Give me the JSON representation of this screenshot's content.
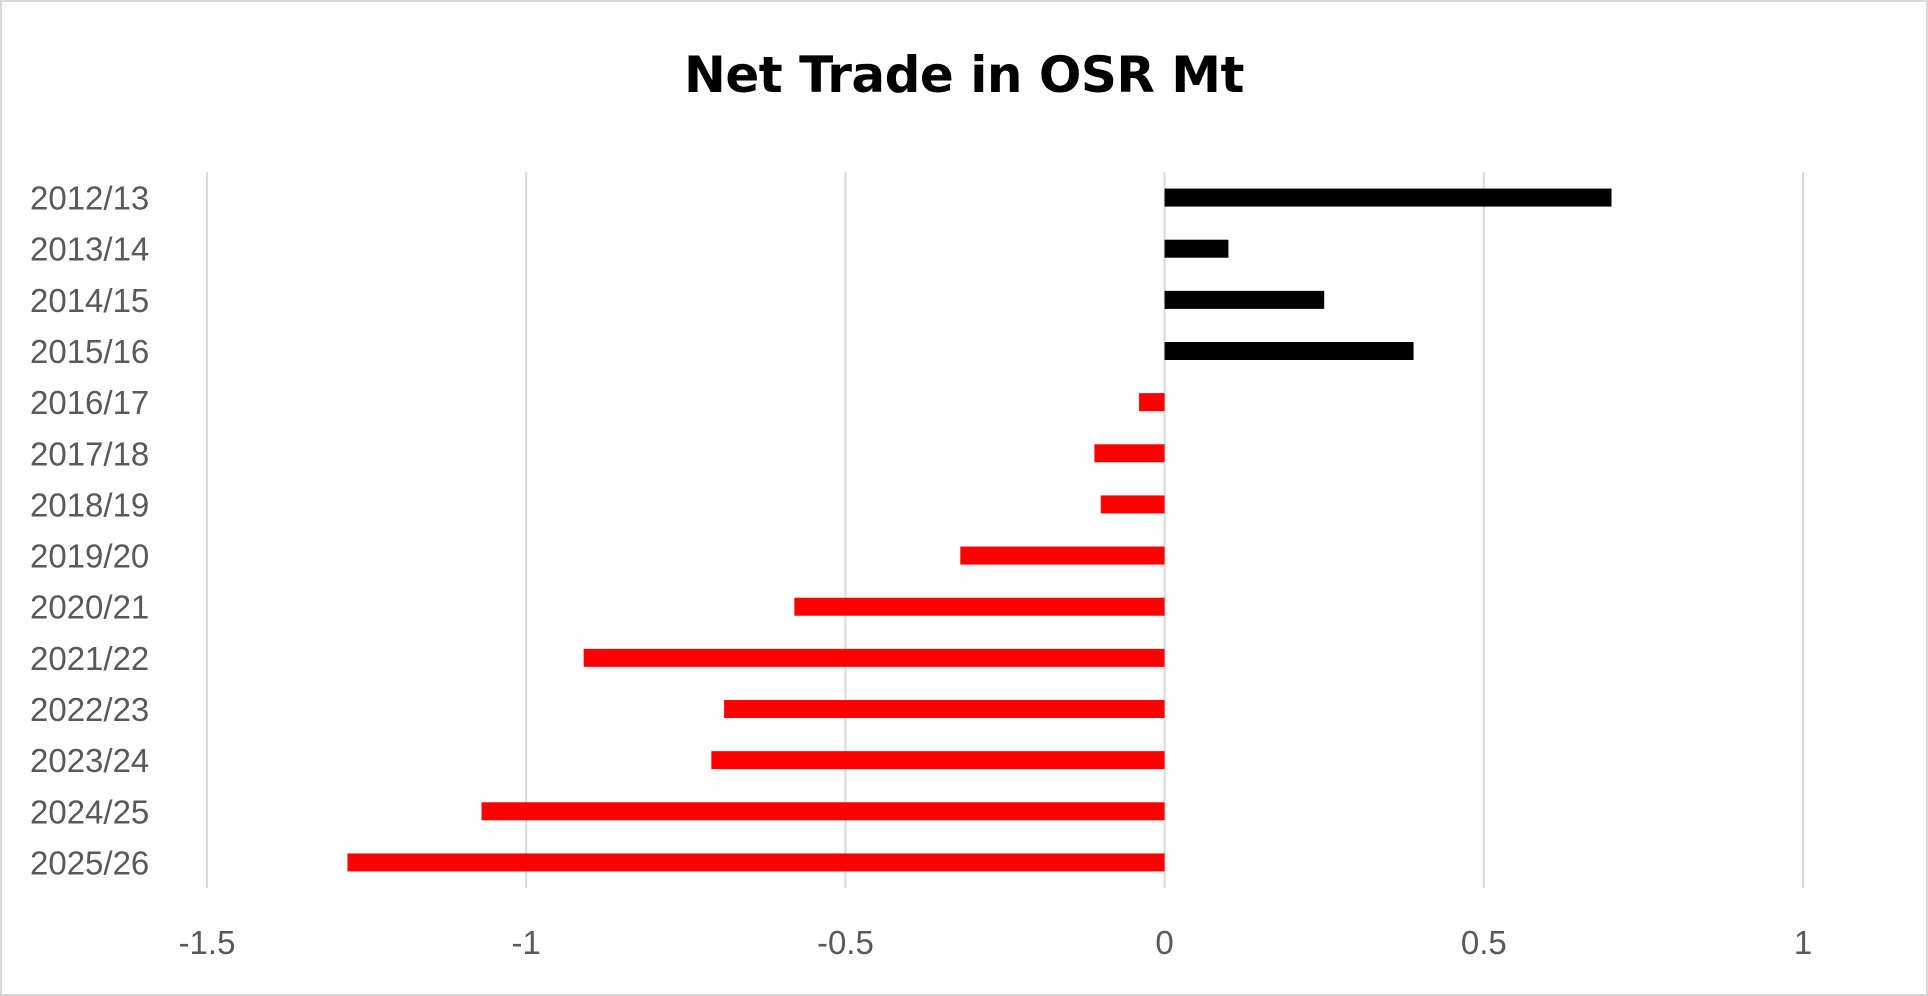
{
  "chart_data": {
    "type": "bar",
    "orientation": "horizontal",
    "title": "Net Trade in OSR Mt",
    "xlabel": "",
    "ylabel": "",
    "xlim": [
      -1.5,
      1
    ],
    "xticks": [
      -1.5,
      -1,
      -0.5,
      0,
      0.5,
      1
    ],
    "xtick_labels": [
      "-1.5",
      "-1",
      "-0.5",
      "0",
      "0.5",
      "1"
    ],
    "grid": "vertical",
    "legend": "none",
    "categories": [
      "2012/13",
      "2013/14",
      "2014/15",
      "2015/16",
      "2016/17",
      "2017/18",
      "2018/19",
      "2019/20",
      "2020/21",
      "2021/22",
      "2022/23",
      "2023/24",
      "2024/25",
      "2025/26"
    ],
    "values": [
      0.7,
      0.1,
      0.25,
      0.39,
      -0.04,
      -0.11,
      -0.1,
      -0.32,
      -0.58,
      -0.91,
      -0.69,
      -0.71,
      -1.07,
      -1.28
    ],
    "colors": {
      "positive": "#000000",
      "negative": "#ff0000",
      "grid": "#d9d9d9",
      "tick_text": "#595959"
    }
  }
}
